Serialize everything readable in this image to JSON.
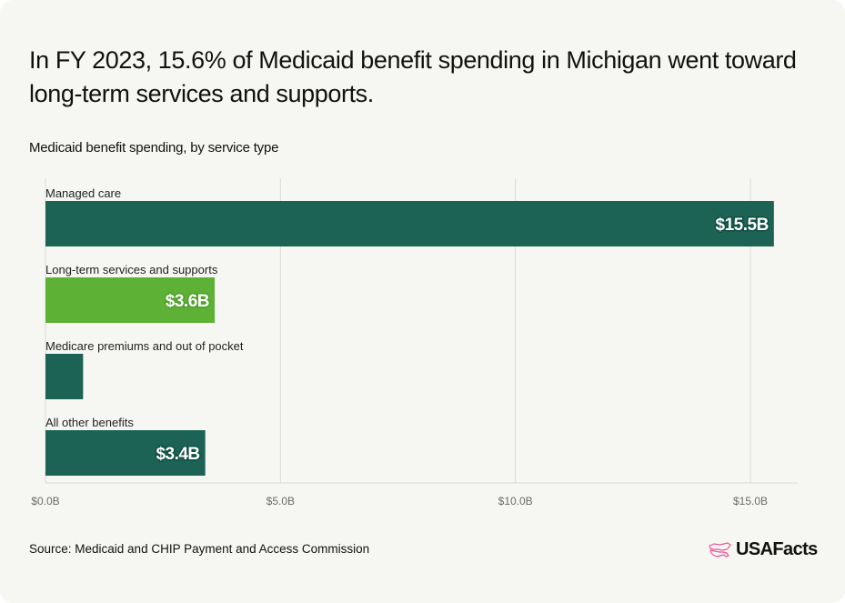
{
  "header": {
    "title": "In FY 2023, 15.6% of Medicaid benefit spending in Michigan went toward long-term services and supports.",
    "subtitle": "Medicaid benefit spending, by service type"
  },
  "footer": {
    "source": "Source: Medicaid and CHIP Payment and Access Commission",
    "logo_text": "USAFacts",
    "logo_icon": "usa-map-outline-icon"
  },
  "colors": {
    "dark_green": "#1c6355",
    "light_green": "#5db135",
    "grid": "#dcdcd6",
    "axis_text": "#6b6b6b",
    "logo_pink": "#e8589c"
  },
  "chart_data": {
    "type": "bar",
    "orientation": "horizontal",
    "title": "Medicaid benefit spending, by service type",
    "xlabel": "",
    "ylabel": "",
    "xlim": [
      0,
      16
    ],
    "unit": "billions USD",
    "categories": [
      "Managed care",
      "Long-term services and supports",
      "Medicare premiums and out of pocket",
      "All other benefits"
    ],
    "values": [
      15.5,
      3.6,
      0.8,
      3.4
    ],
    "data_labels": [
      "$15.5B",
      "$3.6B",
      "",
      "$3.4B"
    ],
    "highlight": [
      false,
      true,
      false,
      false
    ],
    "x_ticks": [
      0,
      5,
      10,
      15
    ],
    "x_tick_labels": [
      "$0.0B",
      "$5.0B",
      "$10.0B",
      "$15.0B"
    ],
    "grid": true,
    "legend": "none"
  }
}
